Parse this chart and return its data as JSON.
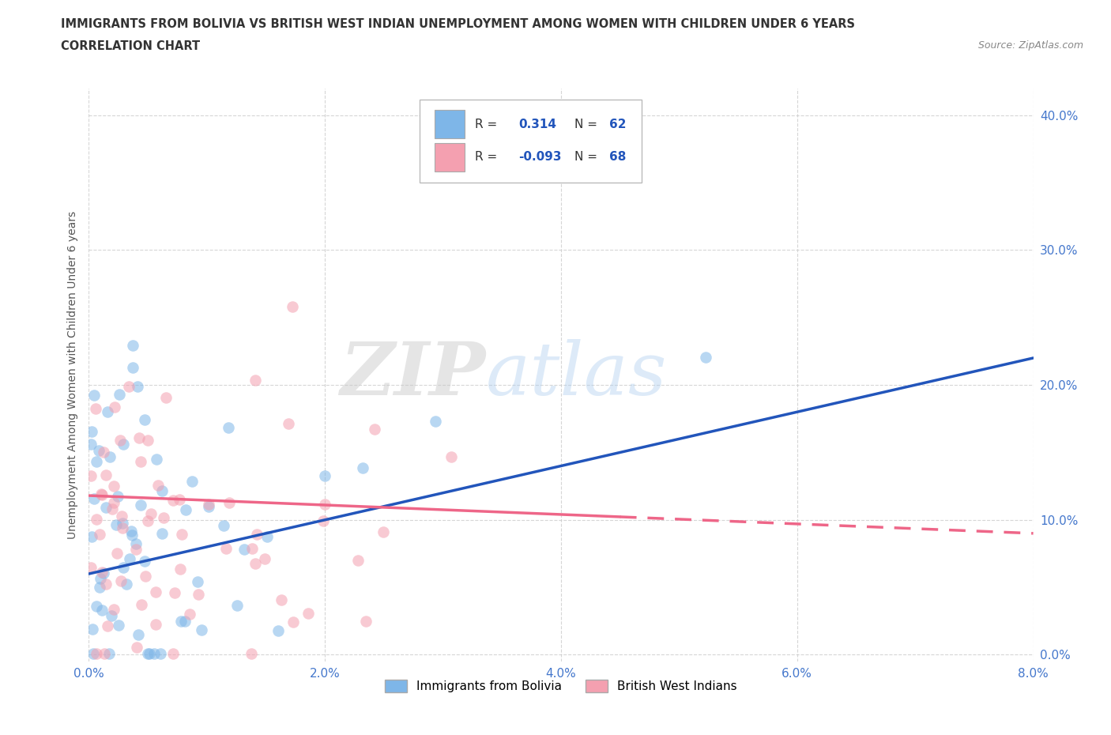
{
  "title_line1": "IMMIGRANTS FROM BOLIVIA VS BRITISH WEST INDIAN UNEMPLOYMENT AMONG WOMEN WITH CHILDREN UNDER 6 YEARS",
  "title_line2": "CORRELATION CHART",
  "source": "Source: ZipAtlas.com",
  "ylabel": "Unemployment Among Women with Children Under 6 years",
  "xlim": [
    0.0,
    0.08
  ],
  "ylim": [
    -0.005,
    0.42
  ],
  "xticks": [
    0.0,
    0.02,
    0.04,
    0.06,
    0.08
  ],
  "yticks": [
    0.0,
    0.1,
    0.2,
    0.3,
    0.4
  ],
  "ytick_labels": [
    "0.0%",
    "10.0%",
    "20.0%",
    "30.0%",
    "40.0%"
  ],
  "xtick_labels": [
    "0.0%",
    "2.0%",
    "4.0%",
    "6.0%",
    "8.0%"
  ],
  "r_bolivia": 0.314,
  "n_bolivia": 62,
  "r_bwi": -0.093,
  "n_bwi": 68,
  "color_bolivia": "#7EB6E8",
  "color_bwi": "#F4A0B0",
  "trend_color_bolivia": "#2255BB",
  "trend_color_bwi": "#EE6688",
  "watermark_zip": "ZIP",
  "watermark_atlas": "atlas",
  "legend_r1": "R =",
  "legend_v1": "0.314",
  "legend_n1": "N =",
  "legend_nv1": "62",
  "legend_r2": "R =",
  "legend_v2": "-0.093",
  "legend_n2": "N =",
  "legend_nv2": "68",
  "bottom_label1": "Immigrants from Bolivia",
  "bottom_label2": "British West Indians",
  "trend_b_x0": 0.0,
  "trend_b_y0": 0.06,
  "trend_b_x1": 0.08,
  "trend_b_y1": 0.22,
  "trend_p_x0": 0.0,
  "trend_p_y0": 0.118,
  "trend_p_x1": 0.08,
  "trend_p_y1": 0.09
}
